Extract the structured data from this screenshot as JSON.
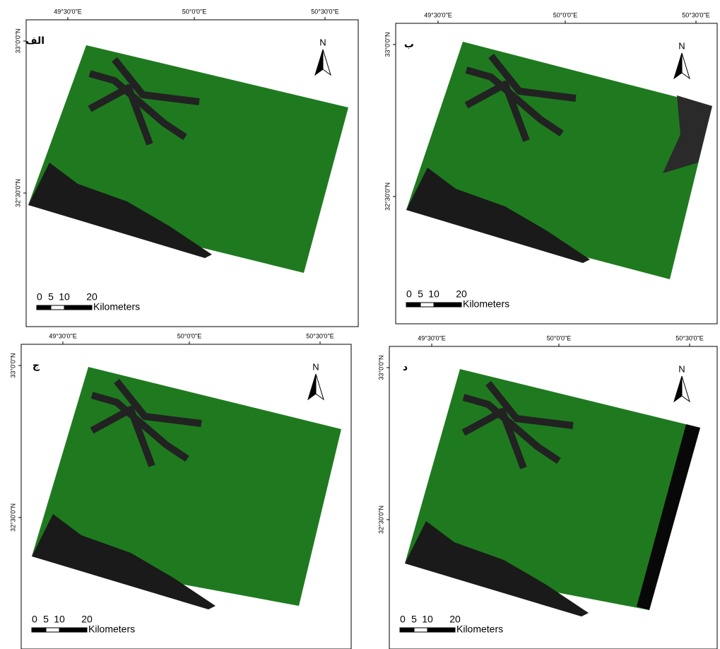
{
  "graticule": {
    "lon": [
      "49°30'0\"E",
      "50°0'0\"E",
      "50°30'0\"E"
    ],
    "lat": [
      "33°0'0\"N",
      "32°30'0\"N"
    ]
  },
  "north": "N",
  "scale": {
    "ticks": [
      "0",
      "5",
      "10",
      "20"
    ],
    "unit": "Kilometers"
  },
  "panels": [
    {
      "label": "الف"
    },
    {
      "label": "ب"
    },
    {
      "label": "ج"
    },
    {
      "label": "د"
    }
  ]
}
